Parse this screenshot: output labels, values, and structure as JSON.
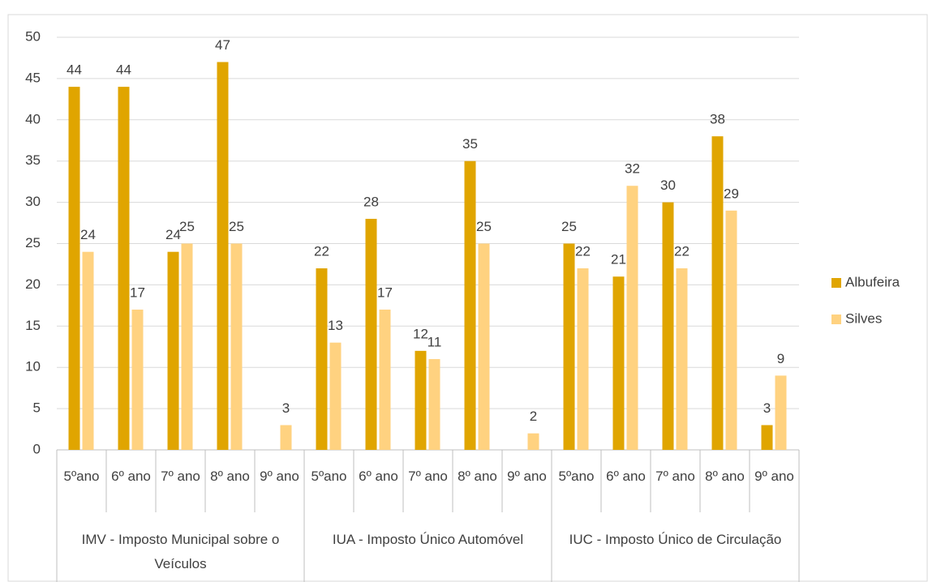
{
  "chart_data": {
    "type": "bar",
    "groups": [
      "IMV - Imposto Municipal sobre o Veículos",
      "IUA - Imposto Único Automóvel",
      "IUC - Imposto Único de Circulação"
    ],
    "categories": [
      "5ºano",
      "6º ano",
      "7º ano",
      "8º ano",
      "9º ano",
      "5ºano",
      "6º ano",
      "7º ano",
      "8º ano",
      "9º ano",
      "5ºano",
      "6º ano",
      "7º ano",
      "8º ano",
      "9º ano"
    ],
    "series": [
      {
        "name": "Albufeira",
        "color": "#e0a500",
        "values": [
          44,
          44,
          24,
          47,
          null,
          22,
          28,
          12,
          35,
          null,
          25,
          21,
          30,
          38,
          3
        ]
      },
      {
        "name": "Silves",
        "color": "#ffd280",
        "values": [
          24,
          17,
          25,
          25,
          3,
          13,
          17,
          11,
          25,
          2,
          22,
          32,
          22,
          29,
          9
        ]
      }
    ],
    "ylim": [
      0,
      50
    ],
    "yticks": [
      0,
      5,
      10,
      15,
      20,
      25,
      30,
      35,
      40,
      45,
      50
    ],
    "grid": true,
    "legend": "right"
  }
}
